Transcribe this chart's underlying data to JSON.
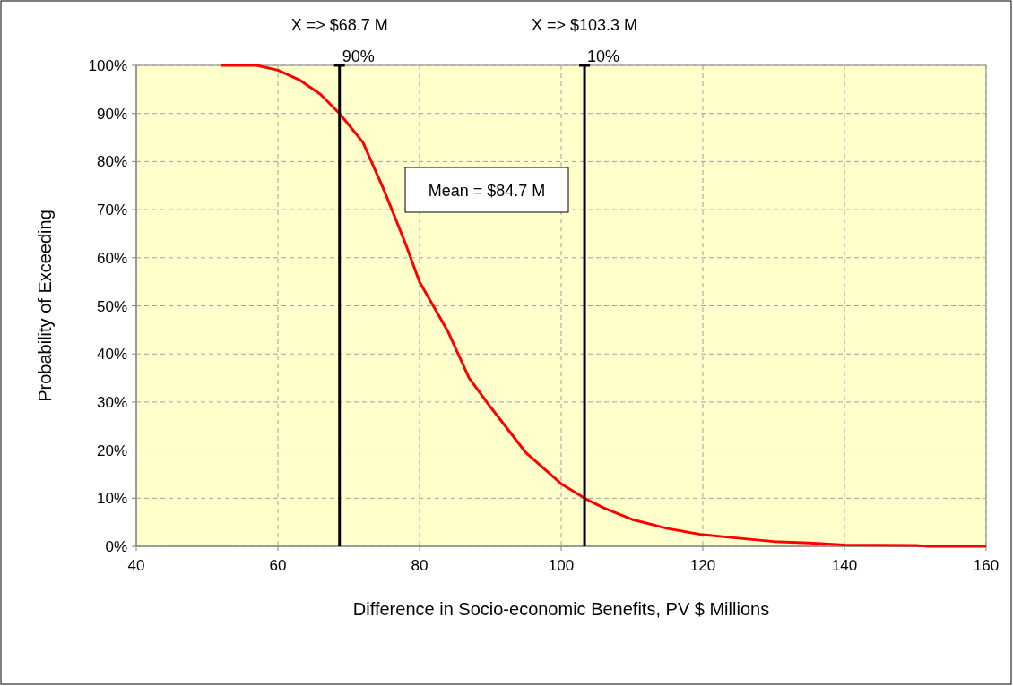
{
  "chart_data": {
    "type": "line",
    "xlabel": "Difference in Socio-economic Benefits, PV $ Millions",
    "ylabel": "Probability of Exceeding",
    "xlim": [
      40,
      160
    ],
    "xticks": [
      40,
      60,
      80,
      100,
      120,
      140,
      160
    ],
    "ylim": [
      0,
      100
    ],
    "yticks": [
      {
        "value": 0,
        "label": "0%"
      },
      {
        "value": 10,
        "label": "10%"
      },
      {
        "value": 20,
        "label": "20%"
      },
      {
        "value": 30,
        "label": "30%"
      },
      {
        "value": 40,
        "label": "40%"
      },
      {
        "value": 50,
        "label": "50%"
      },
      {
        "value": 60,
        "label": "60%"
      },
      {
        "value": 70,
        "label": "70%"
      },
      {
        "value": 80,
        "label": "80%"
      },
      {
        "value": 90,
        "label": "90%"
      },
      {
        "value": 100,
        "label": "100%"
      }
    ],
    "grid": true,
    "marker": "none",
    "line_style": "solid",
    "series": [
      {
        "color": "#ff0000",
        "x": [
          52,
          57,
          60,
          63,
          66,
          68.7,
          72,
          75,
          78,
          80,
          84,
          87,
          90,
          95,
          100,
          103.3,
          106,
          110,
          115,
          120,
          125,
          130,
          135,
          140,
          150,
          152,
          160
        ],
        "values": [
          100,
          100,
          99,
          97,
          94,
          90,
          84,
          74,
          63,
          55,
          44.7,
          35,
          29,
          19.5,
          13,
          10,
          8,
          5.6,
          3.7,
          2.4,
          1.7,
          1,
          0.7,
          0.3,
          0.2,
          0,
          0
        ]
      }
    ],
    "ref_lines": [
      {
        "axis": "x",
        "value": 68.7,
        "label": "X => $68.7 M",
        "color": "#000000"
      },
      {
        "axis": "x",
        "value": 103.3,
        "label": "X => $103.3 M",
        "color": "#000000"
      }
    ],
    "annotations": [
      {
        "text": "90%",
        "x": 68.7,
        "y": 100
      },
      {
        "text": "10%",
        "x": 103.3,
        "y": 100
      },
      "Mean = $84.7 M"
    ]
  }
}
